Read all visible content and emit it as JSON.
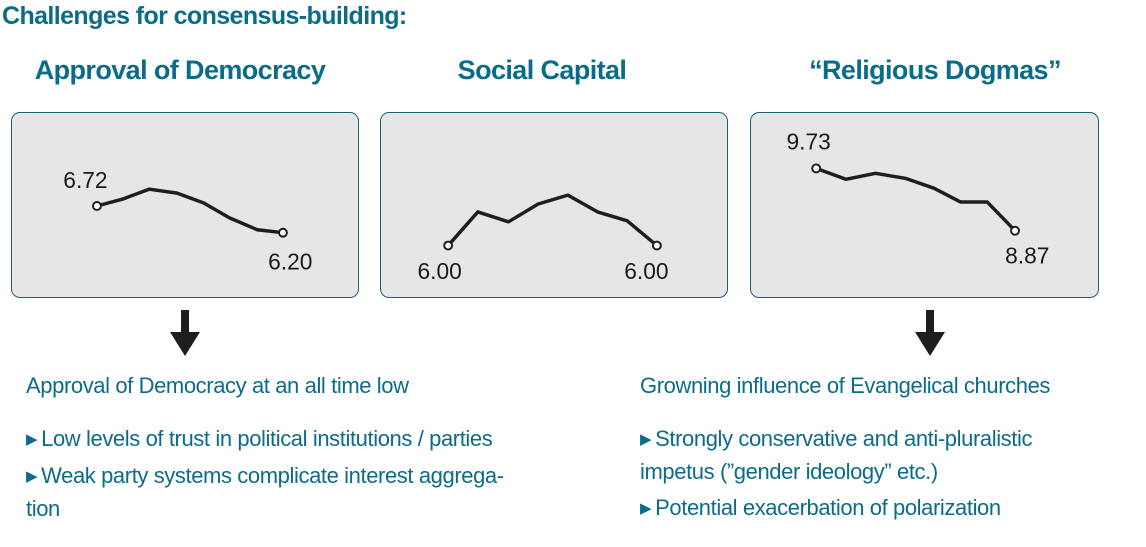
{
  "heading": "Challenges for consensus-building:",
  "panels": [
    {
      "title": "Approval of Democracy",
      "start_label": "6.72",
      "end_label": "6.20"
    },
    {
      "title": "Social Capital",
      "start_label": "6.00",
      "end_label": "6.00"
    },
    {
      "title": "“Religious Dogmas”",
      "start_label": "9.73",
      "end_label": "8.87"
    }
  ],
  "chart_data": [
    {
      "type": "line",
      "title": "Approval of Democracy",
      "series": [
        {
          "values": [
            6.72,
            6.77,
            6.85,
            6.82,
            6.74,
            6.6,
            6.5,
            6.45,
            6.2
          ]
        }
      ]
    },
    {
      "type": "line",
      "title": "Social Capital",
      "series": [
        {
          "values": [
            6.0,
            6.58,
            6.48,
            6.63,
            6.73,
            6.58,
            6.48,
            6.0
          ]
        }
      ]
    },
    {
      "type": "line",
      "title": "“Religious Dogmas”",
      "series": [
        {
          "values": [
            9.73,
            9.63,
            9.7,
            9.65,
            9.55,
            9.35,
            9.37,
            8.87
          ]
        }
      ]
    }
  ],
  "left_section": {
    "lead": "Approval of Democracy at an all time low",
    "bullets": [
      "Low levels of trust in political institutions / parties",
      "Weak party systems complicate interest aggrega-tion"
    ]
  },
  "right_section": {
    "lead": "Growning influence of Evangelical churches",
    "bullets": [
      "Strongly conservative and anti-pluralistic impetus (”gender ideology” etc.)",
      "Potential exacerbation of polarization"
    ]
  },
  "colors": {
    "accent": "#0b6c87",
    "panel_bg": "#e6e6e6",
    "panel_border": "#1b5f79"
  }
}
